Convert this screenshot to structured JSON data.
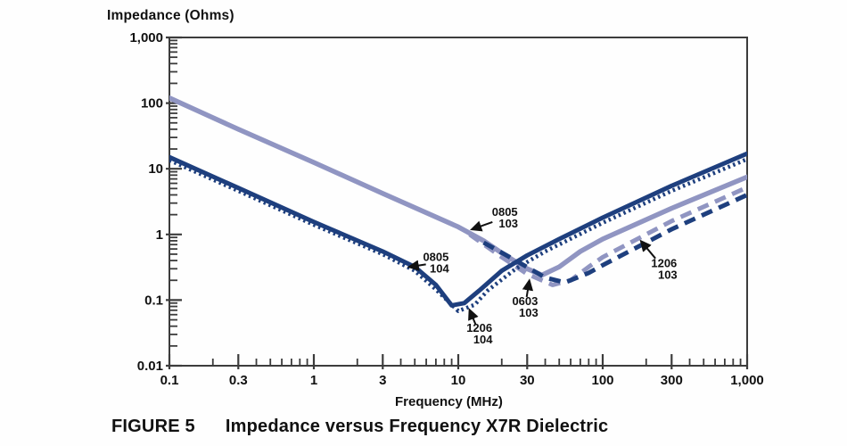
{
  "figure": {
    "y_axis_title": "Impedance (Ohms)",
    "x_axis_title": "Frequency (MHz)",
    "caption_label": "FIGURE 5",
    "caption_title": "Impedance versus Frequency X7R Dielectric"
  },
  "chart_data": {
    "type": "line",
    "x_scale": "log",
    "y_scale": "log",
    "xlim": [
      0.1,
      1000
    ],
    "ylim": [
      0.01,
      1000
    ],
    "xlabel": "Frequency (MHz)",
    "ylabel": "Impedance (Ohms)",
    "grid": false,
    "legend_position": "none",
    "x_ticks": [
      {
        "value": 0.1,
        "label": "0.1"
      },
      {
        "value": 0.3,
        "label": "0.3"
      },
      {
        "value": 1,
        "label": "1"
      },
      {
        "value": 3,
        "label": "3"
      },
      {
        "value": 10,
        "label": "10"
      },
      {
        "value": 30,
        "label": "30"
      },
      {
        "value": 100,
        "label": "100"
      },
      {
        "value": 300,
        "label": "300"
      },
      {
        "value": 1000,
        "label": "1,000"
      }
    ],
    "y_ticks": [
      {
        "value": 1000,
        "label": "1,000"
      },
      {
        "value": 100,
        "label": "100"
      },
      {
        "value": 10,
        "label": "10"
      },
      {
        "value": 1,
        "label": "1"
      },
      {
        "value": 0.1,
        "label": "0.1"
      },
      {
        "value": 0.01,
        "label": "0.01"
      }
    ],
    "colors": {
      "navy": "#1e3f7e",
      "lavender": "#9095c2",
      "axis": "#3c3c3c",
      "text": "#111111"
    },
    "series": [
      {
        "name": "0805 103",
        "color": "lavender",
        "style": "solid",
        "points": [
          [
            0.1,
            120
          ],
          [
            0.3,
            40
          ],
          [
            1,
            12.5
          ],
          [
            3,
            4.2
          ],
          [
            10,
            1.3
          ],
          [
            15,
            0.8
          ],
          [
            20,
            0.52
          ],
          [
            30,
            0.3
          ],
          [
            38,
            0.24
          ],
          [
            50,
            0.32
          ],
          [
            70,
            0.55
          ],
          [
            100,
            0.85
          ],
          [
            300,
            2.5
          ],
          [
            1000,
            7.5
          ]
        ]
      },
      {
        "name": "0603 103",
        "color": "lavender",
        "style": "dashed",
        "points": [
          [
            12,
            1.0
          ],
          [
            20,
            0.45
          ],
          [
            30,
            0.25
          ],
          [
            45,
            0.17
          ],
          [
            60,
            0.2
          ],
          [
            80,
            0.32
          ],
          [
            100,
            0.45
          ],
          [
            300,
            1.6
          ],
          [
            1000,
            5.2
          ]
        ]
      },
      {
        "name": "1206 103",
        "color": "navy",
        "style": "dashed",
        "points": [
          [
            15,
            0.75
          ],
          [
            25,
            0.4
          ],
          [
            40,
            0.22
          ],
          [
            55,
            0.185
          ],
          [
            80,
            0.26
          ],
          [
            100,
            0.34
          ],
          [
            300,
            1.2
          ],
          [
            1000,
            4.0
          ]
        ]
      },
      {
        "name": "1206 104",
        "color": "navy",
        "style": "dotted",
        "points": [
          [
            0.1,
            13.5
          ],
          [
            0.3,
            4.6
          ],
          [
            1,
            1.4
          ],
          [
            3,
            0.5
          ],
          [
            5,
            0.28
          ],
          [
            7,
            0.145
          ],
          [
            10,
            0.068
          ],
          [
            13,
            0.085
          ],
          [
            16,
            0.14
          ],
          [
            25,
            0.3
          ],
          [
            40,
            0.55
          ],
          [
            100,
            1.5
          ],
          [
            300,
            4.6
          ],
          [
            1000,
            14
          ]
        ]
      },
      {
        "name": "0805 104",
        "color": "navy",
        "style": "solid",
        "points": [
          [
            0.1,
            15
          ],
          [
            0.3,
            5.1
          ],
          [
            1,
            1.55
          ],
          [
            3,
            0.55
          ],
          [
            5,
            0.32
          ],
          [
            7,
            0.17
          ],
          [
            9,
            0.083
          ],
          [
            11,
            0.09
          ],
          [
            14,
            0.14
          ],
          [
            20,
            0.28
          ],
          [
            30,
            0.48
          ],
          [
            50,
            0.85
          ],
          [
            100,
            1.8
          ],
          [
            300,
            5.5
          ],
          [
            1000,
            17
          ]
        ]
      }
    ],
    "annotations": [
      {
        "lines": [
          "0805",
          "103"
        ],
        "series": "0805 103",
        "label_at": [
          21,
          1.8
        ],
        "target": [
          12.5,
          1.2
        ]
      },
      {
        "lines": [
          "0805",
          "104"
        ],
        "series": "0805 104",
        "label_at": [
          7,
          0.37
        ],
        "target": [
          4.6,
          0.32
        ]
      },
      {
        "lines": [
          "0603",
          "103"
        ],
        "series": "0603 103",
        "label_at": [
          29,
          0.079
        ],
        "target": [
          31,
          0.195
        ]
      },
      {
        "lines": [
          "1206",
          "104"
        ],
        "series": "1206 104",
        "label_at": [
          14,
          0.031
        ],
        "target": [
          12,
          0.07
        ]
      },
      {
        "lines": [
          "1206",
          "103"
        ],
        "series": "1206 103",
        "label_at": [
          266,
          0.3
        ],
        "target": [
          185,
          0.78
        ]
      }
    ]
  }
}
